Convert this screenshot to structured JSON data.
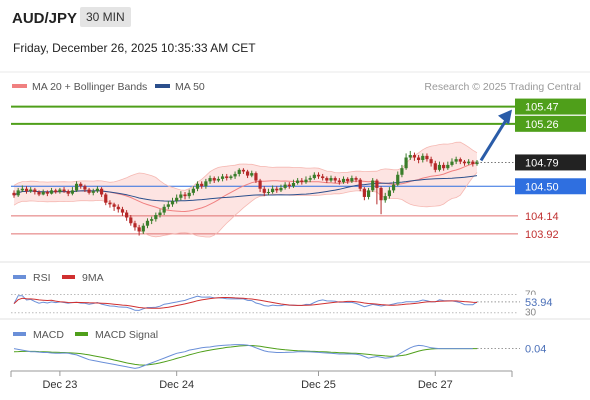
{
  "header": {
    "symbol": "AUD/JPY",
    "timeframe": "30 MIN",
    "datetime": "Friday, December 26, 2025 10:35:33 AM CET"
  },
  "chart_data": {
    "type": "candlestick",
    "legend": {
      "items": [
        {
          "label": "MA 20 + Bollinger Bands",
          "color": "#f08080"
        },
        {
          "label": "MA 50",
          "color": "#2b4f8c"
        }
      ],
      "credit": "Research © 2025 Trading Central"
    },
    "colors": {
      "up": "#3a7d2a",
      "down": "#b52828",
      "bands_fill": "#fde4e2",
      "ma20": "#f08080",
      "ma50": "#2b4f8c",
      "resistance": "#4f9f1a",
      "pivot": "#2f6fe0",
      "support": "#e07070",
      "arrow": "#2a5ca8",
      "rsi": "#6a8fd8",
      "rsi_ma": "#d03030",
      "macd": "#6a8fd8",
      "macd_signal": "#4f9f1a"
    },
    "price_axis": {
      "ylim": [
        103.7,
        105.55
      ]
    },
    "levels": [
      {
        "value": 105.47,
        "label": "105.47",
        "kind": "resistance"
      },
      {
        "value": 105.26,
        "label": "105.26",
        "kind": "resistance"
      },
      {
        "value": 104.5,
        "label": "104.50",
        "kind": "pivot"
      },
      {
        "value": 104.14,
        "label": "104.14",
        "kind": "support"
      },
      {
        "value": 103.92,
        "label": "103.92",
        "kind": "support"
      }
    ],
    "last_price": {
      "value": 104.79,
      "label": "104.79"
    },
    "candles": [
      [
        104.42,
        104.39,
        104.45,
        104.36
      ],
      [
        104.39,
        104.45,
        104.48,
        104.37
      ],
      [
        104.45,
        104.47,
        104.51,
        104.43
      ],
      [
        104.47,
        104.44,
        104.5,
        104.41
      ],
      [
        104.44,
        104.46,
        104.49,
        104.42
      ],
      [
        104.46,
        104.43,
        104.48,
        104.4
      ],
      [
        104.43,
        104.4,
        104.45,
        104.38
      ],
      [
        104.4,
        104.43,
        104.46,
        104.39
      ],
      [
        104.43,
        104.41,
        104.45,
        104.38
      ],
      [
        104.41,
        104.45,
        104.48,
        104.4
      ],
      [
        104.45,
        104.43,
        104.47,
        104.41
      ],
      [
        104.43,
        104.46,
        104.48,
        104.41
      ],
      [
        104.46,
        104.44,
        104.49,
        104.42
      ],
      [
        104.44,
        104.41,
        104.46,
        104.38
      ],
      [
        104.41,
        104.45,
        104.49,
        104.39
      ],
      [
        104.45,
        104.53,
        104.56,
        104.43
      ],
      [
        104.53,
        104.5,
        104.55,
        104.47
      ],
      [
        104.5,
        104.46,
        104.52,
        104.43
      ],
      [
        104.46,
        104.42,
        104.48,
        104.4
      ],
      [
        104.42,
        104.44,
        104.47,
        104.39
      ],
      [
        104.44,
        104.47,
        104.5,
        104.42
      ],
      [
        104.47,
        104.4,
        104.49,
        104.37
      ],
      [
        104.4,
        104.3,
        104.42,
        104.27
      ],
      [
        104.3,
        104.28,
        104.33,
        104.24
      ],
      [
        104.28,
        104.25,
        104.3,
        104.2
      ],
      [
        104.25,
        104.22,
        104.28,
        104.18
      ],
      [
        104.22,
        104.18,
        104.25,
        104.14
      ],
      [
        104.18,
        104.12,
        104.21,
        104.08
      ],
      [
        104.12,
        104.05,
        104.15,
        104.02
      ],
      [
        104.05,
        104,
        104.08,
        103.96
      ],
      [
        104,
        103.95,
        104.03,
        103.9
      ],
      [
        103.95,
        104.02,
        104.05,
        103.92
      ],
      [
        104.02,
        104.08,
        104.11,
        103.99
      ],
      [
        104.08,
        104.1,
        104.13,
        104.04
      ],
      [
        104.1,
        104.15,
        104.18,
        104.07
      ],
      [
        104.15,
        104.18,
        104.22,
        104.12
      ],
      [
        104.18,
        104.25,
        104.28,
        104.15
      ],
      [
        104.25,
        104.28,
        104.32,
        104.22
      ],
      [
        104.28,
        104.32,
        104.36,
        104.25
      ],
      [
        104.32,
        104.36,
        104.4,
        104.29
      ],
      [
        104.36,
        104.4,
        104.44,
        104.33
      ],
      [
        104.4,
        104.38,
        104.43,
        104.34
      ],
      [
        104.38,
        104.42,
        104.46,
        104.35
      ],
      [
        104.42,
        104.47,
        104.5,
        104.39
      ],
      [
        104.47,
        104.53,
        104.56,
        104.44
      ],
      [
        104.53,
        104.5,
        104.56,
        104.47
      ],
      [
        104.5,
        104.56,
        104.59,
        104.47
      ],
      [
        104.56,
        104.6,
        104.63,
        104.53
      ],
      [
        104.6,
        104.57,
        104.62,
        104.54
      ],
      [
        104.57,
        104.59,
        104.62,
        104.55
      ],
      [
        104.59,
        104.62,
        104.65,
        104.56
      ],
      [
        104.62,
        104.6,
        104.65,
        104.57
      ],
      [
        104.6,
        104.62,
        104.64,
        104.58
      ],
      [
        104.62,
        104.65,
        104.68,
        104.59
      ],
      [
        104.65,
        104.7,
        104.72,
        104.62
      ],
      [
        104.7,
        104.68,
        104.72,
        104.65
      ],
      [
        104.68,
        104.63,
        104.7,
        104.6
      ],
      [
        104.63,
        104.66,
        104.69,
        104.61
      ],
      [
        104.66,
        104.57,
        104.68,
        104.54
      ],
      [
        104.57,
        104.47,
        104.59,
        104.43
      ],
      [
        104.47,
        104.42,
        104.5,
        104.38
      ],
      [
        104.42,
        104.43,
        104.47,
        104.39
      ],
      [
        104.43,
        104.47,
        104.51,
        104.41
      ],
      [
        104.47,
        104.45,
        104.5,
        104.42
      ],
      [
        104.45,
        104.48,
        104.52,
        104.43
      ],
      [
        104.48,
        104.52,
        104.55,
        104.46
      ],
      [
        104.52,
        104.5,
        104.55,
        104.47
      ],
      [
        104.5,
        104.54,
        104.58,
        104.48
      ],
      [
        104.54,
        104.57,
        104.6,
        104.52
      ],
      [
        104.57,
        104.55,
        104.6,
        104.52
      ],
      [
        104.55,
        104.58,
        104.62,
        104.53
      ],
      [
        104.58,
        104.6,
        104.63,
        104.55
      ],
      [
        104.6,
        104.64,
        104.67,
        104.58
      ],
      [
        104.64,
        104.62,
        104.67,
        104.59
      ],
      [
        104.62,
        104.6,
        104.65,
        104.57
      ],
      [
        104.6,
        104.57,
        104.62,
        104.54
      ],
      [
        104.57,
        104.6,
        104.63,
        104.55
      ],
      [
        104.6,
        104.57,
        104.62,
        104.54
      ],
      [
        104.57,
        104.55,
        104.6,
        104.52
      ],
      [
        104.55,
        104.59,
        104.62,
        104.53
      ],
      [
        104.59,
        104.56,
        104.61,
        104.53
      ],
      [
        104.56,
        104.6,
        104.63,
        104.54
      ],
      [
        104.6,
        104.58,
        104.62,
        104.55
      ],
      [
        104.58,
        104.47,
        104.6,
        104.44
      ],
      [
        104.47,
        104.37,
        104.49,
        104.33
      ],
      [
        104.37,
        104.45,
        104.48,
        104.34
      ],
      [
        104.45,
        104.57,
        104.6,
        104.43
      ],
      [
        104.57,
        104.48,
        104.59,
        104.28
      ],
      [
        104.48,
        104.33,
        104.5,
        104.16
      ],
      [
        104.33,
        104.38,
        104.42,
        104.3
      ],
      [
        104.38,
        104.45,
        104.49,
        104.35
      ],
      [
        104.45,
        104.52,
        104.56,
        104.42
      ],
      [
        104.52,
        104.64,
        104.68,
        104.5
      ],
      [
        104.64,
        104.72,
        104.76,
        104.61
      ],
      [
        104.72,
        104.85,
        104.9,
        104.7
      ],
      [
        104.85,
        104.88,
        104.93,
        104.82
      ],
      [
        104.88,
        104.85,
        104.91,
        104.81
      ],
      [
        104.85,
        104.82,
        104.88,
        104.78
      ],
      [
        104.82,
        104.87,
        104.9,
        104.79
      ],
      [
        104.87,
        104.83,
        104.9,
        104.8
      ],
      [
        104.83,
        104.78,
        104.86,
        104.74
      ],
      [
        104.78,
        104.7,
        104.81,
        104.67
      ],
      [
        104.7,
        104.76,
        104.8,
        104.68
      ],
      [
        104.76,
        104.72,
        104.79,
        104.69
      ],
      [
        104.72,
        104.76,
        104.8,
        104.7
      ],
      [
        104.76,
        104.8,
        104.84,
        104.74
      ],
      [
        104.8,
        104.83,
        104.86,
        104.77
      ],
      [
        104.83,
        104.8,
        104.85,
        104.77
      ],
      [
        104.8,
        104.78,
        104.82,
        104.75
      ],
      [
        104.78,
        104.8,
        104.83,
        104.76
      ],
      [
        104.8,
        104.77,
        104.82,
        104.74
      ],
      [
        104.77,
        104.8,
        104.82,
        104.75
      ]
    ],
    "projection": {
      "to": 105.47
    },
    "x_axis": {
      "ticks": [
        {
          "index": 11,
          "label": "Dec 23"
        },
        {
          "index": 39,
          "label": "Dec 24"
        },
        {
          "index": 73,
          "label": "Dec 25"
        },
        {
          "index": 101,
          "label": "Dec 27"
        }
      ]
    },
    "rsi": {
      "legend": [
        {
          "label": "RSI",
          "color": "#6a8fd8"
        },
        {
          "label": "9MA",
          "color": "#d03030"
        }
      ],
      "ylim": [
        25,
        80
      ],
      "value": 53.94,
      "value_label": "53.94",
      "ref_levels": [
        {
          "value": 70,
          "label": "70"
        },
        {
          "value": 30,
          "label": "30"
        }
      ]
    },
    "macd": {
      "legend": [
        {
          "label": "MACD",
          "color": "#6a8fd8"
        },
        {
          "label": "MACD Signal",
          "color": "#4f9f1a"
        }
      ],
      "value": 0.04,
      "value_label": "0.04",
      "macd_values": [
        0.04,
        0.035,
        0.03,
        0.025,
        0.02,
        0.02,
        0.018,
        0.015,
        0.015,
        0.012,
        0.01,
        0.01,
        0.012,
        0.01,
        0.005,
        0.0,
        -0.01,
        -0.02,
        -0.03,
        -0.035,
        -0.04,
        -0.045,
        -0.05,
        -0.055,
        -0.06,
        -0.065,
        -0.07,
        -0.075,
        -0.08,
        -0.085,
        -0.08,
        -0.07,
        -0.06,
        -0.05,
        -0.04,
        -0.03,
        -0.02,
        -0.01,
        0.0,
        0.01,
        0.015,
        0.02,
        0.03,
        0.035,
        0.04,
        0.045,
        0.048,
        0.05,
        0.055,
        0.058,
        0.06,
        0.062,
        0.063,
        0.065,
        0.065,
        0.064,
        0.062,
        0.055,
        0.045,
        0.035,
        0.025,
        0.02,
        0.018,
        0.015,
        0.015,
        0.016,
        0.017,
        0.018,
        0.02,
        0.02,
        0.02,
        0.019,
        0.018,
        0.016,
        0.014,
        0.012,
        0.01,
        0.008,
        0.006,
        0.006,
        0.006,
        0.006,
        0.004,
        0.0,
        -0.01,
        -0.02,
        -0.015,
        -0.01,
        -0.015,
        -0.02,
        -0.018,
        -0.012,
        0.0,
        0.015,
        0.03,
        0.045,
        0.055,
        0.06,
        0.058,
        0.052,
        0.045,
        0.042,
        0.04,
        0.04,
        0.04,
        0.04,
        0.04,
        0.04,
        0.04,
        0.04,
        0.04
      ],
      "signal_values": [
        0.02,
        0.021,
        0.022,
        0.022,
        0.022,
        0.022,
        0.021,
        0.02,
        0.019,
        0.018,
        0.017,
        0.016,
        0.015,
        0.014,
        0.012,
        0.01,
        0.008,
        0.004,
        0.0,
        -0.005,
        -0.01,
        -0.015,
        -0.02,
        -0.026,
        -0.032,
        -0.038,
        -0.044,
        -0.05,
        -0.055,
        -0.06,
        -0.063,
        -0.064,
        -0.063,
        -0.06,
        -0.056,
        -0.05,
        -0.044,
        -0.037,
        -0.03,
        -0.022,
        -0.015,
        -0.008,
        0.0,
        0.007,
        0.014,
        0.02,
        0.025,
        0.03,
        0.035,
        0.039,
        0.043,
        0.047,
        0.05,
        0.053,
        0.056,
        0.058,
        0.059,
        0.059,
        0.057,
        0.054,
        0.05,
        0.046,
        0.042,
        0.038,
        0.035,
        0.032,
        0.03,
        0.028,
        0.026,
        0.025,
        0.024,
        0.023,
        0.022,
        0.021,
        0.02,
        0.019,
        0.017,
        0.016,
        0.014,
        0.013,
        0.012,
        0.011,
        0.01,
        0.008,
        0.006,
        0.003,
        0.0,
        -0.002,
        -0.004,
        -0.006,
        -0.008,
        -0.008,
        -0.007,
        -0.004,
        0.0,
        0.008,
        0.016,
        0.024,
        0.03,
        0.034,
        0.037,
        0.039,
        0.04,
        0.04,
        0.04,
        0.04,
        0.04,
        0.04,
        0.04,
        0.04,
        0.04,
        0.04
      ]
    }
  }
}
